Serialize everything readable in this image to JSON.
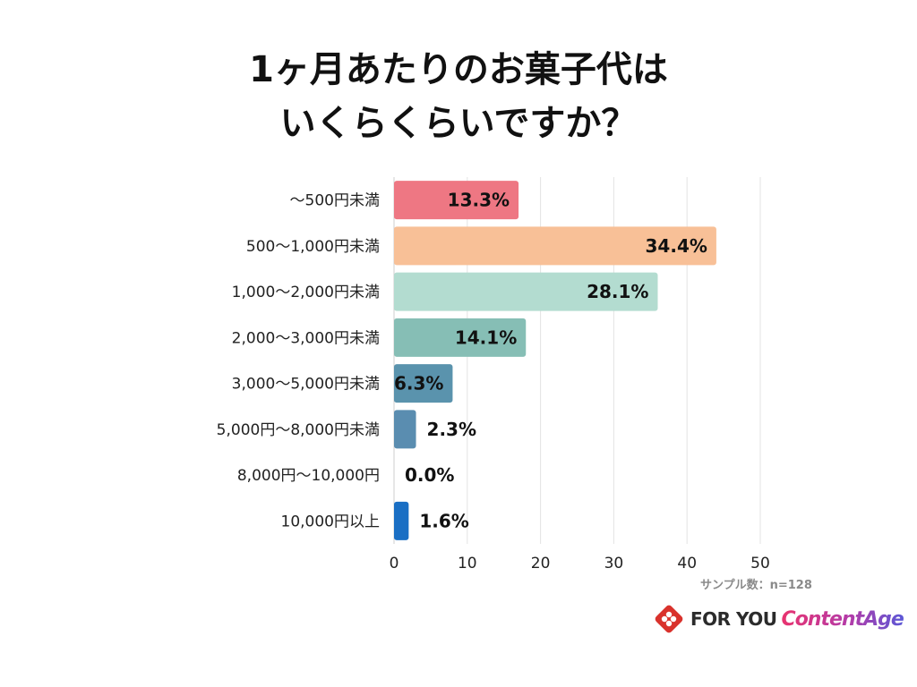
{
  "title_lines": [
    "1ヶ月あたりのお菓子代は",
    "いくらくらいですか？"
  ],
  "sample_text": "サンプル数：n=128",
  "logo": {
    "brand1": "FOR YOU",
    "brand2": "ContentAge"
  },
  "chart_data": {
    "type": "bar",
    "orientation": "horizontal",
    "categories": [
      "〜500円未満",
      "500〜1,000円未満",
      "1,000〜2,000円未満",
      "2,000〜3,000円未満",
      "3,000〜5,000円未満",
      "5,000円〜8,000円未満",
      "8,000円〜10,000円",
      "10,000円以上"
    ],
    "values": [
      13.3,
      34.4,
      28.1,
      14.1,
      6.3,
      2.3,
      0.0,
      1.6
    ],
    "value_labels": [
      "13.3%",
      "34.4%",
      "28.1%",
      "14.1%",
      "6.3%",
      "2.3%",
      "0.0%",
      "1.6%"
    ],
    "bar_lengths": [
      17,
      44,
      36,
      18,
      8,
      3,
      0,
      2
    ],
    "colors": [
      "#ee7783",
      "#f8c097",
      "#b3dcd0",
      "#86beb5",
      "#5a93ad",
      "#5a8db0",
      "#4a86c0",
      "#1a6fc4"
    ],
    "xticks": [
      0,
      10,
      20,
      30,
      40,
      50
    ],
    "xlim": [
      0,
      50
    ],
    "grid": true
  }
}
